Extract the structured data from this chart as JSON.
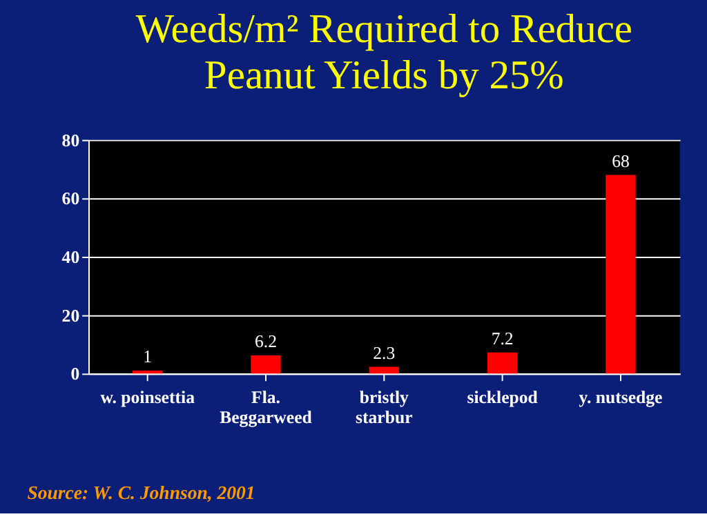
{
  "chart_data": {
    "type": "bar",
    "title": "Weeds/m² Required to Reduce\nPeanut Yields by 25%",
    "categories": [
      "w. poinsettia",
      "Fla.\nBeggarweed",
      "bristly\nstarbur",
      "sicklepod",
      "y. nutsedge"
    ],
    "values": [
      1,
      6.2,
      2.3,
      7.2,
      68
    ],
    "color": "#ff0000",
    "data_labels": true,
    "ylim": [
      0,
      80
    ],
    "yticks": [
      0,
      20,
      40,
      60,
      80
    ],
    "grid": "y",
    "annotations": [
      "Source:  W. C. Johnson, 2001"
    ]
  }
}
